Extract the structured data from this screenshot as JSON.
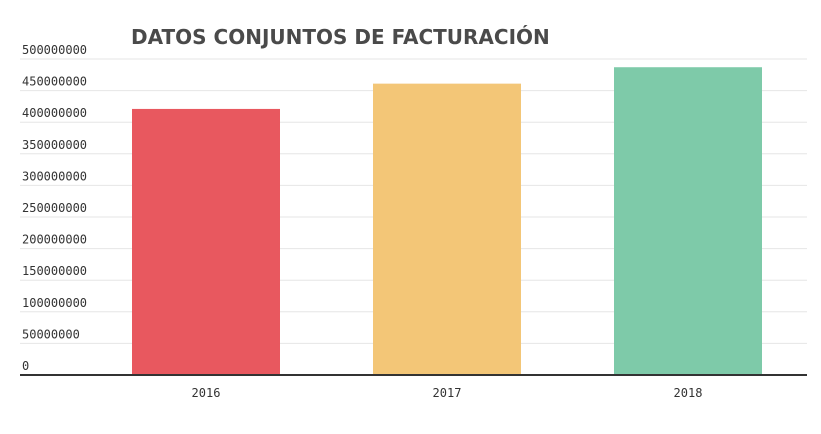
{
  "chart_data": {
    "type": "bar",
    "title": "DATOS CONJUNTOS DE FACTURACIÓN",
    "categories": [
      "2016",
      "2017",
      "2018"
    ],
    "values": [
      421000000,
      461000000,
      487000000
    ],
    "colors": [
      "#e8585f",
      "#f3c677",
      "#7ecaa9"
    ],
    "ylim": [
      0,
      500000000
    ],
    "yticks": [
      "0",
      "50000000",
      "100000000",
      "150000000",
      "200000000",
      "250000000",
      "300000000",
      "350000000",
      "400000000",
      "450000000",
      "500000000"
    ],
    "grid": true,
    "legend": "none",
    "xlabel": "",
    "ylabel": ""
  }
}
